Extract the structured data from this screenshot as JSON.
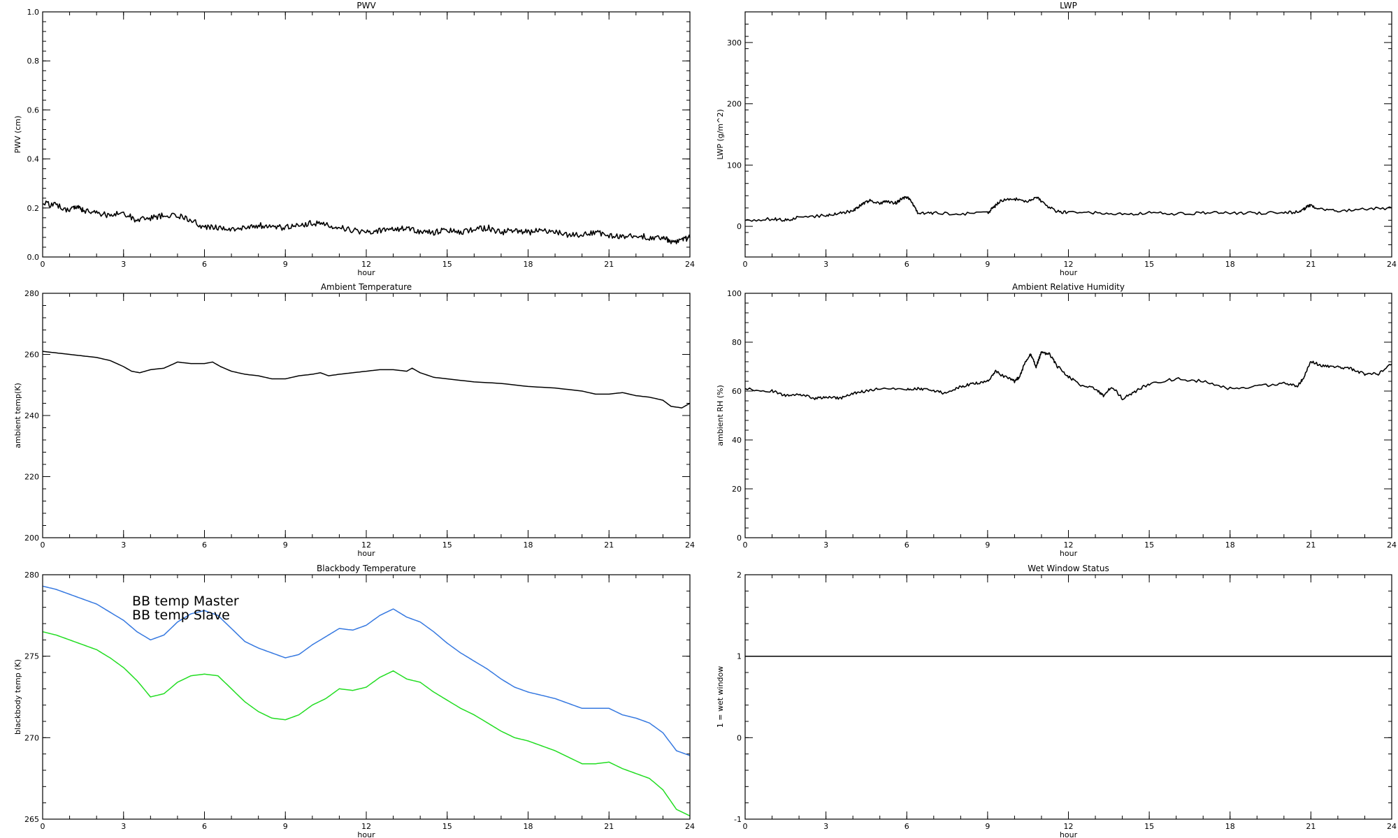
{
  "chart_data": [
    {
      "type": "line",
      "title": "PWV",
      "xlabel": "hour",
      "ylabel": "PWV (cm)",
      "xlim": [
        0,
        24
      ],
      "ylim": [
        0,
        1
      ],
      "xticks": [
        0,
        3,
        6,
        9,
        12,
        15,
        18,
        21,
        24
      ],
      "yticks": [
        0.0,
        0.2,
        0.4,
        0.6,
        0.8,
        1.0
      ],
      "ytick_labels": [
        "0.0",
        "0.2",
        "0.4",
        "0.6",
        "0.8",
        "1.0"
      ],
      "series": [
        {
          "color": "#000000",
          "noise": 0.012,
          "x": [
            0,
            0.5,
            1,
            1.3,
            1.5,
            2,
            2.5,
            3,
            3.5,
            4,
            4.5,
            5,
            5.5,
            6,
            6.5,
            7,
            7.5,
            8,
            8.5,
            9,
            9.5,
            10,
            10.5,
            11,
            11.5,
            12,
            12.5,
            13,
            13.5,
            14,
            14.5,
            15,
            15.5,
            16,
            16.5,
            17,
            17.5,
            18,
            18.5,
            19,
            19.5,
            20,
            20.5,
            21,
            21.5,
            22,
            22.5,
            23,
            23.3,
            23.7,
            24
          ],
          "y": [
            0.22,
            0.21,
            0.19,
            0.21,
            0.19,
            0.18,
            0.17,
            0.18,
            0.15,
            0.16,
            0.17,
            0.17,
            0.15,
            0.12,
            0.12,
            0.11,
            0.12,
            0.13,
            0.12,
            0.12,
            0.13,
            0.14,
            0.13,
            0.12,
            0.11,
            0.1,
            0.11,
            0.11,
            0.12,
            0.1,
            0.1,
            0.11,
            0.1,
            0.11,
            0.12,
            0.1,
            0.11,
            0.1,
            0.11,
            0.1,
            0.09,
            0.09,
            0.1,
            0.09,
            0.08,
            0.09,
            0.08,
            0.08,
            0.06,
            0.07,
            0.08
          ]
        }
      ]
    },
    {
      "type": "line",
      "title": "LWP",
      "xlabel": "hour",
      "ylabel": "LWP (g/m^2)",
      "xlim": [
        0,
        24
      ],
      "ylim": [
        -50,
        350
      ],
      "xticks": [
        0,
        3,
        6,
        9,
        12,
        15,
        18,
        21,
        24
      ],
      "yticks": [
        0,
        100,
        200,
        300
      ],
      "series": [
        {
          "color": "#000000",
          "noise": 2.5,
          "x": [
            0,
            1,
            1.5,
            2,
            3,
            3.5,
            4,
            4.3,
            4.6,
            5,
            5.3,
            5.6,
            5.8,
            6,
            6.2,
            6.4,
            7,
            8,
            9,
            9.2,
            9.5,
            10,
            10.4,
            10.8,
            11,
            11.5,
            12,
            13,
            14,
            15,
            16,
            17,
            18,
            19,
            20,
            20.6,
            20.8,
            21,
            21.3,
            22,
            23,
            24
          ],
          "y": [
            10,
            12,
            10,
            15,
            18,
            22,
            25,
            35,
            42,
            38,
            40,
            38,
            45,
            48,
            40,
            22,
            22,
            20,
            22,
            30,
            42,
            45,
            40,
            48,
            40,
            25,
            22,
            22,
            20,
            22,
            20,
            22,
            22,
            22,
            22,
            24,
            30,
            35,
            28,
            25,
            28,
            30
          ]
        }
      ]
    },
    {
      "type": "line",
      "title": "Ambient Temperature",
      "xlabel": "hour",
      "ylabel": "ambient temp(K)",
      "xlim": [
        0,
        24
      ],
      "ylim": [
        200,
        280
      ],
      "xticks": [
        0,
        3,
        6,
        9,
        12,
        15,
        18,
        21,
        24
      ],
      "yticks": [
        200,
        220,
        240,
        260,
        280
      ],
      "series": [
        {
          "color": "#000000",
          "noise": 0,
          "x": [
            0,
            0.5,
            1,
            1.5,
            2,
            2.5,
            3,
            3.3,
            3.6,
            4,
            4.5,
            5,
            5.5,
            6,
            6.3,
            6.6,
            7,
            7.5,
            8,
            8.5,
            9,
            9.5,
            10,
            10.3,
            10.6,
            11,
            11.5,
            12,
            12.5,
            13,
            13.5,
            13.7,
            14,
            14.5,
            15,
            16,
            17,
            18,
            19,
            20,
            20.5,
            21,
            21.5,
            22,
            22.5,
            23,
            23.3,
            23.7,
            24
          ],
          "y": [
            261,
            260.5,
            260,
            259.5,
            259,
            258,
            256,
            254.5,
            254,
            255,
            255.5,
            257.5,
            257,
            257,
            257.5,
            256,
            254.5,
            253.5,
            253,
            252,
            252,
            253,
            253.5,
            254,
            253,
            253.5,
            254,
            254.5,
            255,
            255,
            254.5,
            255.5,
            254,
            252.5,
            252,
            251,
            250.5,
            249.5,
            249,
            248,
            247,
            247,
            247.5,
            246.5,
            246,
            245,
            243,
            242.5,
            244
          ]
        }
      ]
    },
    {
      "type": "line",
      "title": "Ambient Relative Humidity",
      "xlabel": "hour",
      "ylabel": "ambient RH (%)",
      "xlim": [
        0,
        24
      ],
      "ylim": [
        0,
        100
      ],
      "xticks": [
        0,
        3,
        6,
        9,
        12,
        15,
        18,
        21,
        24
      ],
      "yticks": [
        0,
        20,
        40,
        60,
        80,
        100
      ],
      "series": [
        {
          "color": "#000000",
          "noise": 0.6,
          "x": [
            0,
            1,
            1.5,
            2,
            2.5,
            3,
            3.5,
            4,
            4.5,
            5,
            6,
            6.5,
            7,
            7.5,
            8,
            8.5,
            9,
            9.3,
            9.6,
            10,
            10.2,
            10.4,
            10.6,
            10.8,
            11,
            11.3,
            11.6,
            12,
            12.5,
            13,
            13.3,
            13.6,
            14,
            14.5,
            15,
            16,
            17,
            18,
            19,
            20,
            20.5,
            20.7,
            21,
            21.5,
            22,
            22.5,
            23,
            23.5,
            24
          ],
          "y": [
            61,
            60,
            58,
            59,
            57,
            57.5,
            57,
            59,
            60,
            61,
            60.5,
            61,
            60,
            59,
            62,
            63,
            64,
            68,
            66,
            64,
            66,
            72,
            75,
            70,
            76,
            75,
            70,
            66,
            62,
            61,
            58,
            62,
            57,
            60,
            63,
            65,
            64,
            61,
            62,
            63,
            62,
            65,
            72,
            70,
            70,
            69,
            67,
            67,
            71
          ]
        }
      ]
    },
    {
      "type": "line",
      "title": "Blackbody Temperature",
      "xlabel": "hour",
      "ylabel": "blackbody temp (K)",
      "xlim": [
        0,
        24
      ],
      "ylim": [
        265,
        280
      ],
      "xticks": [
        0,
        3,
        6,
        9,
        12,
        15,
        18,
        21,
        24
      ],
      "yticks": [
        265,
        270,
        275,
        280
      ],
      "legend": "top-left",
      "series": [
        {
          "name": "BB temp Master",
          "color": "#3578e0",
          "noise": 0,
          "x": [
            0,
            0.5,
            1,
            1.5,
            2,
            2.5,
            3,
            3.5,
            4,
            4.5,
            5,
            5.5,
            6,
            6.5,
            7,
            7.5,
            8,
            8.5,
            9,
            9.5,
            10,
            10.5,
            11,
            11.5,
            12,
            12.5,
            13,
            13.5,
            14,
            14.5,
            15,
            15.5,
            16,
            16.5,
            17,
            17.5,
            18,
            18.5,
            19,
            19.5,
            20,
            20.5,
            21,
            21.5,
            22,
            22.5,
            23,
            23.5,
            24
          ],
          "y": [
            279.3,
            279.1,
            278.8,
            278.5,
            278.2,
            277.7,
            277.2,
            276.5,
            276,
            276.3,
            277.1,
            277.6,
            277.8,
            277.5,
            276.7,
            275.9,
            275.5,
            275.2,
            274.9,
            275.1,
            275.7,
            276.2,
            276.7,
            276.6,
            276.9,
            277.5,
            277.9,
            277.4,
            277.1,
            276.5,
            275.8,
            275.2,
            274.7,
            274.2,
            273.6,
            273.1,
            272.8,
            272.6,
            272.4,
            272.1,
            271.8,
            271.8,
            271.8,
            271.4,
            271.2,
            270.9,
            270.3,
            269.2,
            268.9
          ]
        },
        {
          "name": "BB temp Slave",
          "color": "#22dd22",
          "noise": 0,
          "x": [
            0,
            0.5,
            1,
            1.5,
            2,
            2.5,
            3,
            3.5,
            4,
            4.5,
            5,
            5.5,
            6,
            6.5,
            7,
            7.5,
            8,
            8.5,
            9,
            9.5,
            10,
            10.5,
            11,
            11.5,
            12,
            12.5,
            13,
            13.5,
            14,
            14.5,
            15,
            15.5,
            16,
            16.5,
            17,
            17.5,
            18,
            18.5,
            19,
            19.5,
            20,
            20.5,
            21,
            21.5,
            22,
            22.5,
            23,
            23.5,
            24
          ],
          "y": [
            276.5,
            276.3,
            276,
            275.7,
            275.4,
            274.9,
            274.3,
            273.5,
            272.5,
            272.7,
            273.4,
            273.8,
            273.9,
            273.8,
            273,
            272.2,
            271.6,
            271.2,
            271.1,
            271.4,
            272,
            272.4,
            273,
            272.9,
            273.1,
            273.7,
            274.1,
            273.6,
            273.4,
            272.8,
            272.3,
            271.8,
            271.4,
            270.9,
            270.4,
            270,
            269.8,
            269.5,
            269.2,
            268.8,
            268.4,
            268.4,
            268.5,
            268.1,
            267.8,
            267.5,
            266.8,
            265.6,
            265.2
          ]
        }
      ]
    },
    {
      "type": "line",
      "title": "Wet Window Status",
      "xlabel": "hour",
      "ylabel": "1 = wet window",
      "xlim": [
        0,
        24
      ],
      "ylim": [
        -1,
        2
      ],
      "xticks": [
        0,
        3,
        6,
        9,
        12,
        15,
        18,
        21,
        24
      ],
      "yticks": [
        -1,
        0,
        1,
        2
      ],
      "series": [
        {
          "color": "#000000",
          "noise": 0,
          "x": [
            0,
            24
          ],
          "y": [
            1,
            1
          ]
        }
      ]
    }
  ]
}
